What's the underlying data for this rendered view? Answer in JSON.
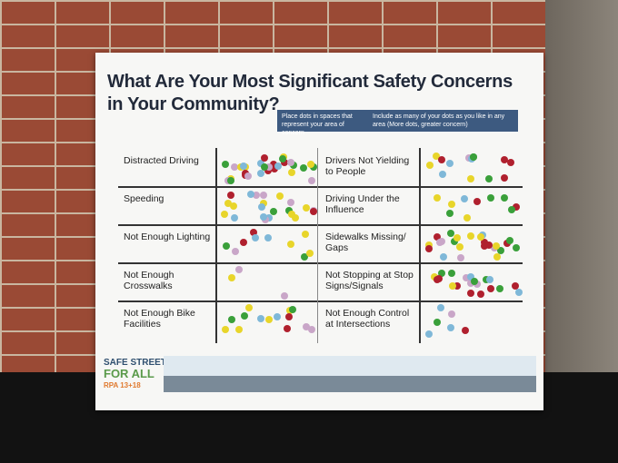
{
  "header": {
    "title": "What Are Your Most Significant Safety Concerns in Your Community?",
    "instructions": [
      "Place dots in spaces that represent your area of concern",
      "Include as many of your dots as you like in any area (More dots, greater concern)"
    ]
  },
  "concerns": {
    "left": [
      "Distracted Driving",
      "Speeding",
      "Not Enough Lighting",
      "Not Enough Crosswalks",
      "Not Enough Bike Facilities"
    ],
    "right": [
      "Drivers Not Yielding to People",
      "Driving Under the Influence",
      "Sidewalks Missing/ Gaps",
      "Not Stopping at Stop Signs/Signals",
      "Not Enough Control at Intersections"
    ]
  },
  "footer": {
    "logo": [
      "SAFE STREETS",
      "FOR ALL"
    ],
    "subtitle": "RPA 13+18"
  }
}
